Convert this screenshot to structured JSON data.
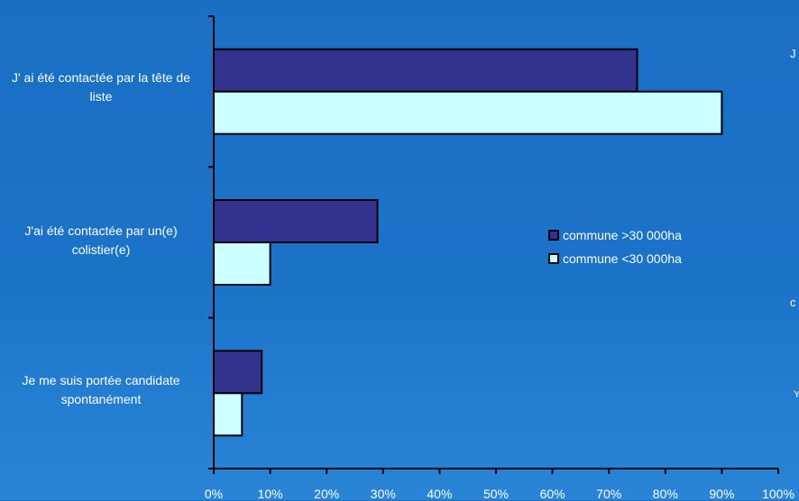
{
  "chart_data": {
    "type": "bar",
    "orientation": "horizontal",
    "categories": [
      "J' ai été contactée par la tête de liste",
      "J'ai été contactée par un(e) colistier(e)",
      "Je me suis portée candidate spontanément"
    ],
    "series": [
      {
        "name": "commune >30 000ha",
        "color": "#33338f",
        "values": [
          75,
          29,
          8.5
        ]
      },
      {
        "name": "commune <30 000ha",
        "color": "#ccffff",
        "values": [
          90,
          10,
          5
        ]
      }
    ],
    "xlim": [
      0,
      100
    ],
    "x_ticks": [
      "0%",
      "10%",
      "20%",
      "30%",
      "40%",
      "50%",
      "60%",
      "70%",
      "80%",
      "90%",
      "100%"
    ],
    "legend": "center-right",
    "grid": false,
    "title": "",
    "xlabel": "",
    "ylabel": ""
  },
  "edge_text": [
    "J",
    "c",
    "Y"
  ]
}
